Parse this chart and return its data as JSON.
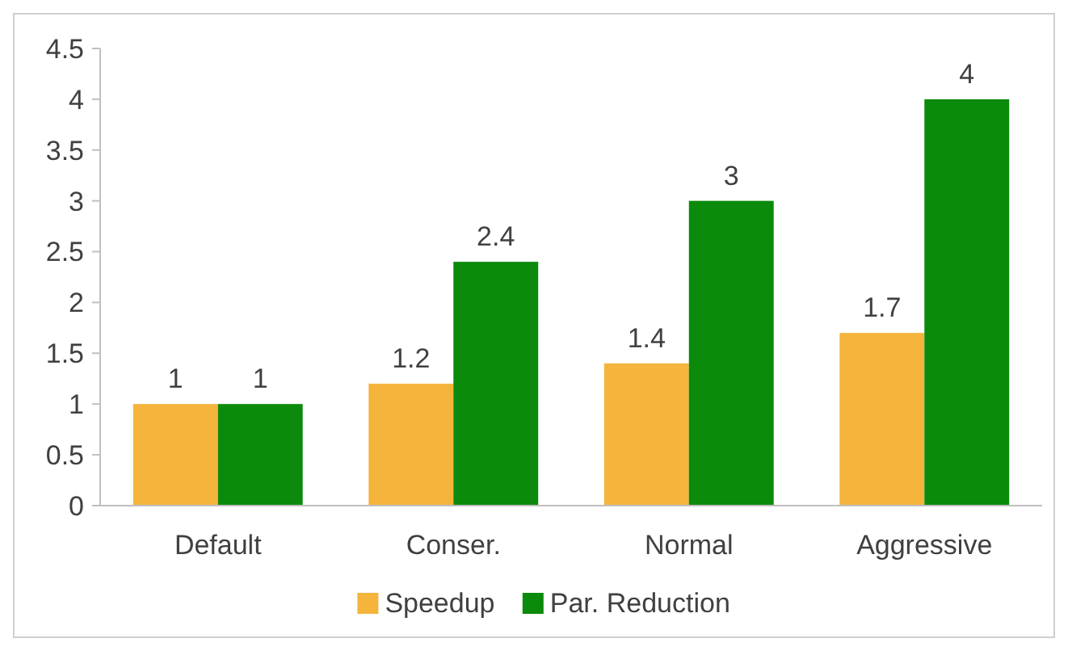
{
  "chart_data": {
    "type": "bar",
    "categories": [
      "Default",
      "Conser.",
      "Normal",
      "Aggressive"
    ],
    "series": [
      {
        "name": "Speedup",
        "color": "#f5b43c",
        "values": [
          1,
          1.2,
          1.4,
          1.7
        ]
      },
      {
        "name": "Par. Reduction",
        "color": "#0b8a0b",
        "values": [
          1,
          2.4,
          3,
          4
        ]
      }
    ],
    "ylim": [
      0,
      4.5
    ],
    "yticks": [
      0,
      0.5,
      1,
      1.5,
      2,
      2.5,
      3,
      3.5,
      4,
      4.5
    ],
    "grid": false,
    "legend": "bottom",
    "data_labels": true
  }
}
